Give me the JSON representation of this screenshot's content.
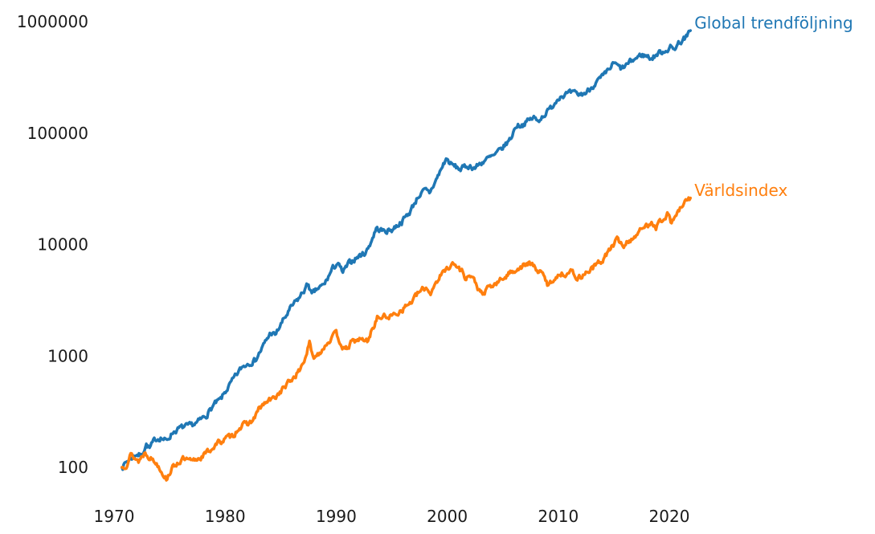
{
  "chart_data": {
    "type": "line",
    "title": "",
    "xlabel": "",
    "ylabel": "",
    "grid": false,
    "background": "#ffffff",
    "y_axis": {
      "scale": "log",
      "ticks": [
        "100",
        "1000",
        "10000",
        "100000",
        "1000000"
      ],
      "tick_values": [
        100,
        1000,
        10000,
        100000,
        1000000
      ],
      "range": [
        60,
        1300000
      ]
    },
    "x_axis": {
      "ticks": [
        "1970",
        "1980",
        "1990",
        "2000",
        "2010",
        "2020"
      ],
      "tick_values": [
        1970,
        1980,
        1990,
        2000,
        2010,
        2020
      ],
      "range": [
        1969.5,
        2025.5
      ]
    },
    "legend_position": "end-of-line-labels",
    "series": [
      {
        "name": "Global trendföljning",
        "color": "#1f77b4",
        "points": [
          [
            1970.7,
            100
          ],
          [
            1971.1,
            112
          ],
          [
            1971.6,
            123
          ],
          [
            1972.0,
            132
          ],
          [
            1972.4,
            127
          ],
          [
            1972.9,
            160
          ],
          [
            1973.2,
            147
          ],
          [
            1973.7,
            178
          ],
          [
            1974.2,
            186
          ],
          [
            1974.7,
            172
          ],
          [
            1975.3,
            208
          ],
          [
            1976.0,
            226
          ],
          [
            1976.8,
            234
          ],
          [
            1977.5,
            252
          ],
          [
            1978.3,
            294
          ],
          [
            1979.0,
            365
          ],
          [
            1979.6,
            405
          ],
          [
            1980.2,
            510
          ],
          [
            1980.9,
            645
          ],
          [
            1981.5,
            790
          ],
          [
            1982.1,
            870
          ],
          [
            1982.7,
            915
          ],
          [
            1983.3,
            1160
          ],
          [
            1984.1,
            1620
          ],
          [
            1984.5,
            1530
          ],
          [
            1985.2,
            2060
          ],
          [
            1986.0,
            2760
          ],
          [
            1986.7,
            3350
          ],
          [
            1987.5,
            4450
          ],
          [
            1987.8,
            3500
          ],
          [
            1988.3,
            3980
          ],
          [
            1988.9,
            4330
          ],
          [
            1989.7,
            6100
          ],
          [
            1990.1,
            6820
          ],
          [
            1990.6,
            5600
          ],
          [
            1991.2,
            6850
          ],
          [
            1991.8,
            7600
          ],
          [
            1992.7,
            8600
          ],
          [
            1993.2,
            11000
          ],
          [
            1993.6,
            13900
          ],
          [
            1994.3,
            13200
          ],
          [
            1995.0,
            13600
          ],
          [
            1995.9,
            16100
          ],
          [
            1996.6,
            19400
          ],
          [
            1997.4,
            27400
          ],
          [
            1998.0,
            30500
          ],
          [
            1998.4,
            29000
          ],
          [
            1999.0,
            38000
          ],
          [
            1999.9,
            59000
          ],
          [
            2000.4,
            52000
          ],
          [
            2001.2,
            47500
          ],
          [
            2001.9,
            51000
          ],
          [
            2002.5,
            49000
          ],
          [
            2003.4,
            57500
          ],
          [
            2004.3,
            63000
          ],
          [
            2005.0,
            74000
          ],
          [
            2005.7,
            89000
          ],
          [
            2006.2,
            117000
          ],
          [
            2006.8,
            120000
          ],
          [
            2007.4,
            131000
          ],
          [
            2007.8,
            138000
          ],
          [
            2008.1,
            129000
          ],
          [
            2008.7,
            146000
          ],
          [
            2009.3,
            166000
          ],
          [
            2010.1,
            216000
          ],
          [
            2010.7,
            224000
          ],
          [
            2011.3,
            228000
          ],
          [
            2011.9,
            221000
          ],
          [
            2012.5,
            231000
          ],
          [
            2013.3,
            280000
          ],
          [
            2014.2,
            332000
          ],
          [
            2015.0,
            424000
          ],
          [
            2015.7,
            376000
          ],
          [
            2016.3,
            420000
          ],
          [
            2016.9,
            464000
          ],
          [
            2017.5,
            506000
          ],
          [
            2018.0,
            492000
          ],
          [
            2018.4,
            470000
          ],
          [
            2019.0,
            521000
          ],
          [
            2019.6,
            552000
          ],
          [
            2020.1,
            591000
          ],
          [
            2020.35,
            563000
          ],
          [
            2020.9,
            655000
          ],
          [
            2021.3,
            700000
          ],
          [
            2021.6,
            728000
          ],
          [
            2021.9,
            835000
          ]
        ]
      },
      {
        "name": "Världsindex",
        "color": "#ff7f0e",
        "points": [
          [
            1970.7,
            100
          ],
          [
            1971.1,
            107
          ],
          [
            1971.5,
            130
          ],
          [
            1972.2,
            114
          ],
          [
            1972.8,
            137
          ],
          [
            1973.4,
            119
          ],
          [
            1974.0,
            104
          ],
          [
            1974.7,
            79
          ],
          [
            1975.1,
            94
          ],
          [
            1975.6,
            108
          ],
          [
            1976.2,
            118
          ],
          [
            1977.0,
            112
          ],
          [
            1977.8,
            124
          ],
          [
            1978.5,
            139
          ],
          [
            1979.3,
            164
          ],
          [
            1980.0,
            180
          ],
          [
            1980.7,
            192
          ],
          [
            1981.3,
            232
          ],
          [
            1981.9,
            243
          ],
          [
            1982.5,
            262
          ],
          [
            1983.1,
            340
          ],
          [
            1983.8,
            390
          ],
          [
            1984.4,
            415
          ],
          [
            1985.1,
            495
          ],
          [
            1986.0,
            615
          ],
          [
            1986.7,
            740
          ],
          [
            1987.2,
            960
          ],
          [
            1987.6,
            1300
          ],
          [
            1987.9,
            950
          ],
          [
            1988.5,
            1080
          ],
          [
            1989.3,
            1360
          ],
          [
            1990.0,
            1580
          ],
          [
            1990.8,
            1100
          ],
          [
            1991.4,
            1330
          ],
          [
            1992.1,
            1410
          ],
          [
            1992.8,
            1360
          ],
          [
            1993.7,
            2200
          ],
          [
            1994.4,
            2250
          ],
          [
            1995.1,
            2300
          ],
          [
            1995.9,
            2610
          ],
          [
            1996.8,
            3080
          ],
          [
            1997.5,
            3760
          ],
          [
            1998.1,
            4080
          ],
          [
            1998.5,
            3700
          ],
          [
            1999.0,
            4670
          ],
          [
            1999.7,
            5700
          ],
          [
            2000.4,
            6800
          ],
          [
            2000.8,
            6400
          ],
          [
            2001.4,
            5700
          ],
          [
            2001.7,
            5000
          ],
          [
            2002.0,
            5300
          ],
          [
            2002.5,
            4650
          ],
          [
            2002.9,
            3800
          ],
          [
            2003.2,
            3520
          ],
          [
            2003.7,
            4080
          ],
          [
            2004.5,
            4500
          ],
          [
            2005.2,
            5150
          ],
          [
            2006.0,
            5900
          ],
          [
            2006.6,
            6250
          ],
          [
            2007.4,
            6780
          ],
          [
            2008.0,
            6100
          ],
          [
            2008.6,
            5350
          ],
          [
            2009.1,
            4300
          ],
          [
            2009.8,
            5200
          ],
          [
            2010.4,
            5480
          ],
          [
            2011.2,
            5700
          ],
          [
            2011.8,
            5000
          ],
          [
            2012.4,
            5500
          ],
          [
            2013.2,
            6300
          ],
          [
            2014.0,
            7300
          ],
          [
            2014.8,
            9500
          ],
          [
            2015.3,
            11000
          ],
          [
            2015.9,
            9900
          ],
          [
            2016.5,
            11000
          ],
          [
            2017.2,
            12800
          ],
          [
            2018.0,
            14900
          ],
          [
            2018.4,
            16300
          ],
          [
            2018.8,
            14500
          ],
          [
            2019.5,
            17500
          ],
          [
            2019.9,
            18800
          ],
          [
            2020.2,
            15700
          ],
          [
            2020.8,
            19600
          ],
          [
            2021.4,
            23600
          ],
          [
            2021.9,
            26200
          ]
        ]
      }
    ]
  }
}
